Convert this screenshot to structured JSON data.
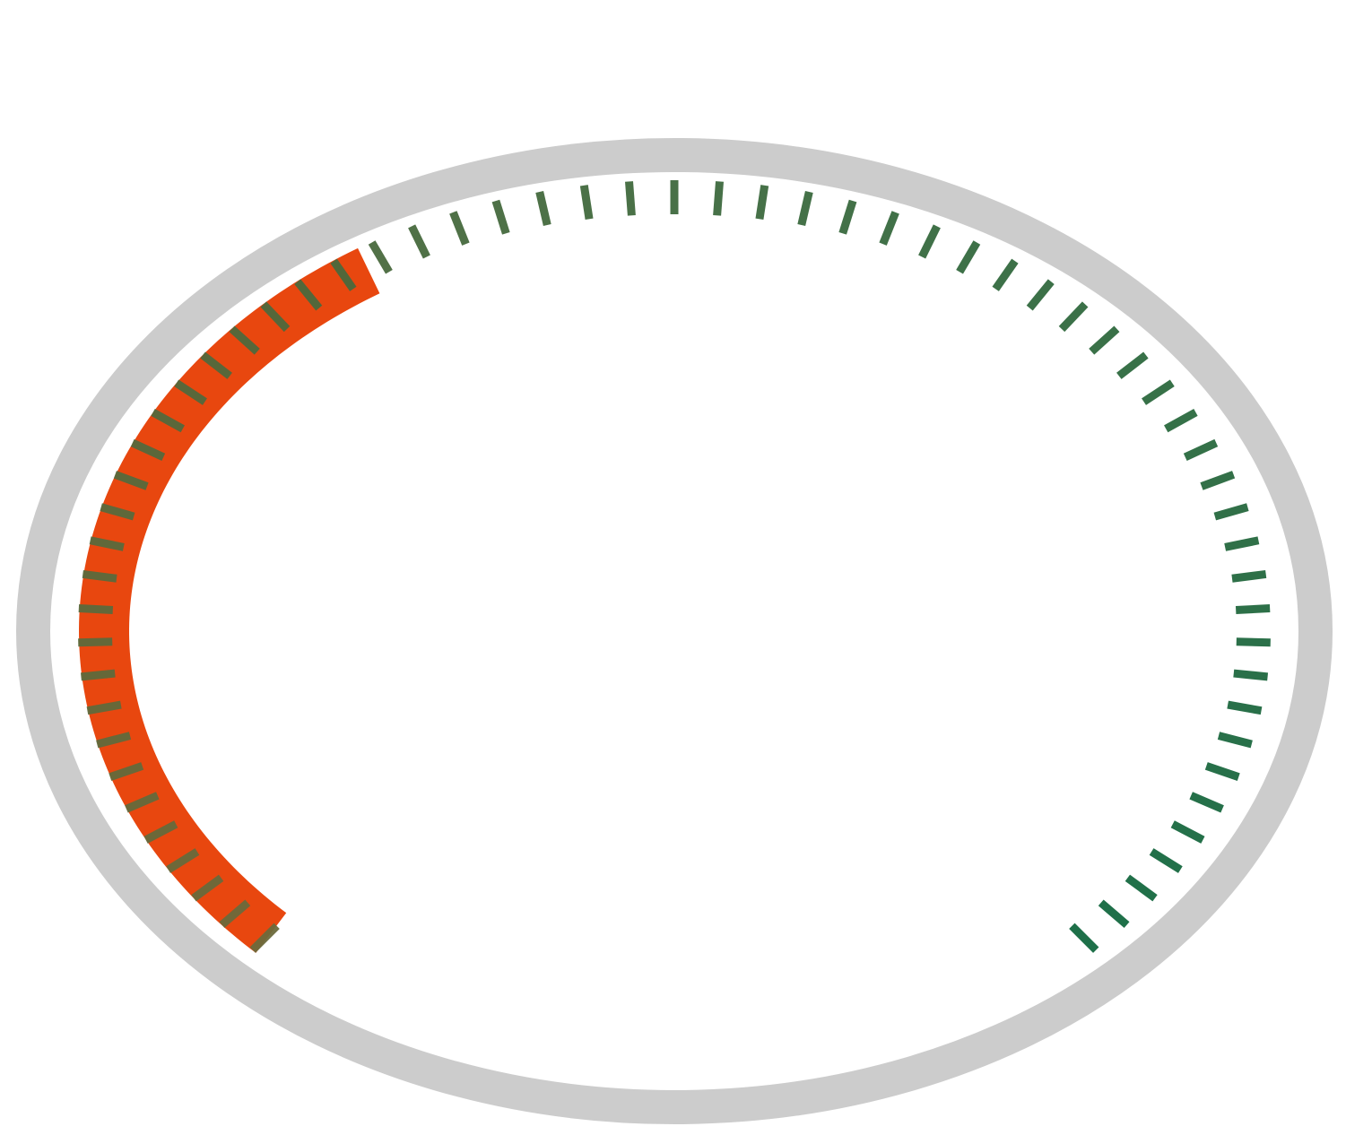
{
  "chart_data": {
    "type": "gauge",
    "value": 38,
    "range": [
      0,
      100
    ],
    "tick_count": 63,
    "color": "#e8470f",
    "tick_colors": [
      "#6b6a3c",
      "#12683f"
    ],
    "track_color": "#cccccc"
  }
}
